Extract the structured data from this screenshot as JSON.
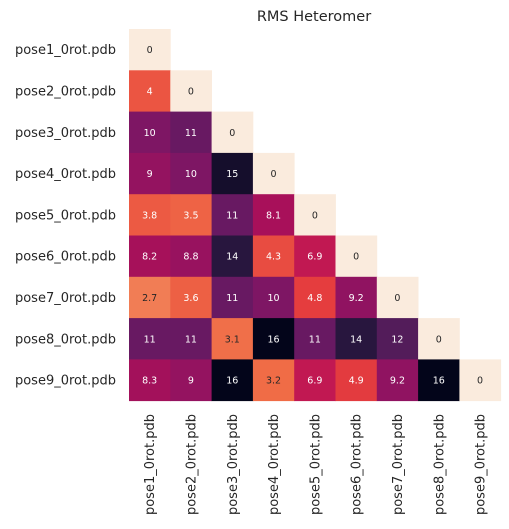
{
  "chart_data": {
    "type": "heatmap",
    "title": "RMS Heteromer",
    "xlabel": "",
    "ylabel": "",
    "row_labels": [
      "pose1_0rot.pdb",
      "pose2_0rot.pdb",
      "pose3_0rot.pdb",
      "pose4_0rot.pdb",
      "pose5_0rot.pdb",
      "pose6_0rot.pdb",
      "pose7_0rot.pdb",
      "pose8_0rot.pdb",
      "pose9_0rot.pdb"
    ],
    "col_labels": [
      "pose1_0rot.pdb",
      "pose2_0rot.pdb",
      "pose3_0rot.pdb",
      "pose4_0rot.pdb",
      "pose5_0rot.pdb",
      "pose6_0rot.pdb",
      "pose7_0rot.pdb",
      "pose8_0rot.pdb",
      "pose9_0rot.pdb"
    ],
    "mask": "upper-triangle",
    "colorbar": false,
    "colormap": "rocket",
    "vmin": 0,
    "vmax": 16,
    "values": [
      [
        0
      ],
      [
        4,
        0
      ],
      [
        10,
        11,
        0
      ],
      [
        9,
        10,
        15,
        0
      ],
      [
        3.8,
        3.5,
        11,
        8.1,
        0
      ],
      [
        8.2,
        8.8,
        14,
        4.3,
        6.9,
        0
      ],
      [
        2.7,
        3.6,
        11,
        10,
        4.8,
        9.2,
        0
      ],
      [
        11,
        11,
        3.1,
        16,
        11,
        14,
        12,
        0
      ],
      [
        8.3,
        9,
        16,
        3.2,
        6.9,
        4.9,
        9.2,
        16,
        0
      ]
    ],
    "value_labels": [
      [
        "0"
      ],
      [
        "4",
        "0"
      ],
      [
        "10",
        "11",
        "0"
      ],
      [
        "9",
        "10",
        "15",
        "0"
      ],
      [
        "3.8",
        "3.5",
        "11",
        "8.1",
        "0"
      ],
      [
        "8.2",
        "8.8",
        "14",
        "4.3",
        "6.9",
        "0"
      ],
      [
        "2.7",
        "3.6",
        "11",
        "10",
        "4.8",
        "9.2",
        "0"
      ],
      [
        "11",
        "11",
        "3.1",
        "16",
        "11",
        "14",
        "12",
        "0"
      ],
      [
        "8.3",
        "9",
        "16",
        "3.2",
        "6.9",
        "4.9",
        "9.2",
        "16",
        "0"
      ]
    ]
  }
}
